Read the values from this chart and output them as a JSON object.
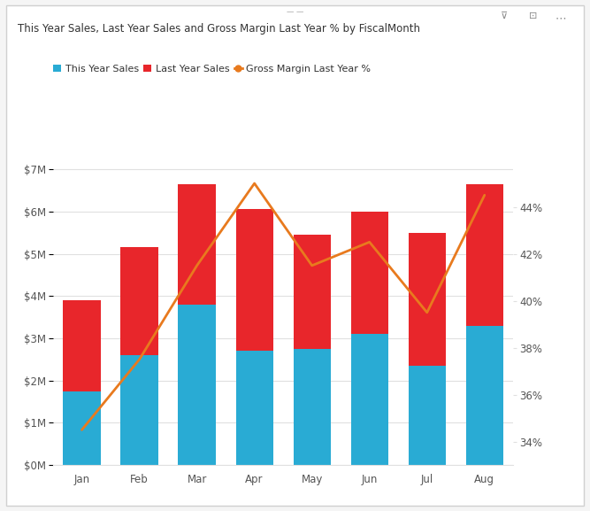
{
  "months": [
    "Jan",
    "Feb",
    "Mar",
    "Apr",
    "May",
    "Jun",
    "Jul",
    "Aug"
  ],
  "this_year_sales": [
    1.75,
    2.6,
    3.8,
    2.7,
    2.75,
    3.1,
    2.35,
    3.3
  ],
  "last_year_sales": [
    2.15,
    2.55,
    2.85,
    3.35,
    2.7,
    2.9,
    3.15,
    3.35
  ],
  "gross_margin": [
    34.5,
    37.5,
    41.5,
    45.0,
    41.5,
    42.5,
    39.5,
    44.5
  ],
  "bar_color_this_year": "#29ABD4",
  "bar_color_last_year": "#E8262B",
  "line_color": "#E87A1E",
  "title": "This Year Sales, Last Year Sales and Gross Margin Last Year % by FiscalMonth",
  "title_color": "#333333",
  "legend_labels": [
    "This Year Sales",
    "Last Year Sales",
    "Gross Margin Last Year %"
  ],
  "ylim_left": [
    0,
    7500000
  ],
  "ylim_right": [
    33,
    46.5
  ],
  "yticks_left": [
    0,
    1000000,
    2000000,
    3000000,
    4000000,
    5000000,
    6000000,
    7000000
  ],
  "ytick_labels_left": [
    "$0M",
    "$1M",
    "$2M",
    "$3M",
    "$4M",
    "$5M",
    "$6M",
    "$7M"
  ],
  "yticks_right": [
    34,
    36,
    38,
    40,
    42,
    44
  ],
  "ytick_labels_right": [
    "34%",
    "36%",
    "38%",
    "40%",
    "42%",
    "44%"
  ],
  "background_color": "#FFFFFF",
  "grid_color": "#E0E0E0",
  "outer_background": "#F5F5F5",
  "border_color": "#D0D0D0"
}
